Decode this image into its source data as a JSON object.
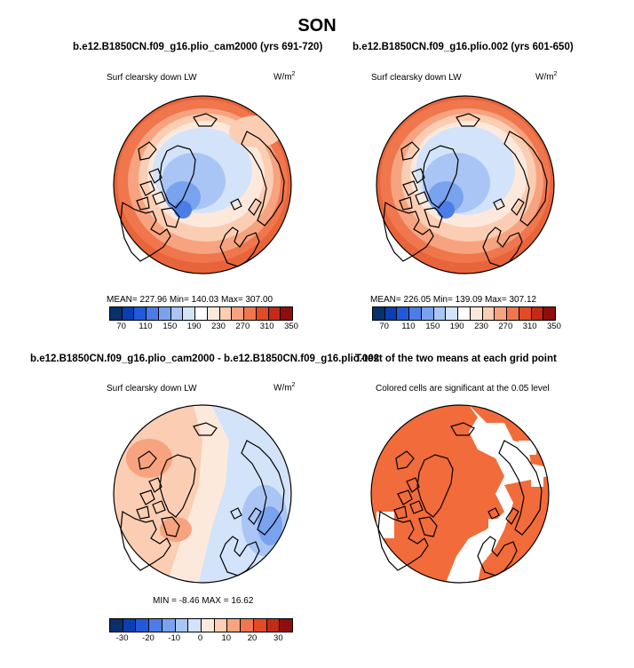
{
  "title": "SON",
  "colorbar_abs": {
    "colors": [
      "#08306b",
      "#0a3fb3",
      "#2259d9",
      "#4c7de6",
      "#7aa3ef",
      "#a9c5f5",
      "#d2e3fa",
      "#ffffff",
      "#fde9dc",
      "#fbcdb2",
      "#f7a37f",
      "#f0764e",
      "#e34a26",
      "#c42b17",
      "#8f0d0d"
    ],
    "labels": [
      "70",
      "110",
      "150",
      "190",
      "230",
      "270",
      "310",
      "350"
    ]
  },
  "colorbar_diff": {
    "colors": [
      "#08306b",
      "#0a3fb3",
      "#2259d9",
      "#4c7de6",
      "#7aa3ef",
      "#a9c5f5",
      "#d2e3fa",
      "#fde9dc",
      "#fbcdb2",
      "#f7a37f",
      "#f0764e",
      "#e34a26",
      "#c42b17",
      "#8f0d0d"
    ],
    "labels": [
      "-30",
      "-20",
      "-10",
      "0",
      "10",
      "20",
      "30"
    ]
  },
  "panels": {
    "p1": {
      "title": "b.e12.B1850CN.f09_g16.plio_cam2000 (yrs 691-720)",
      "label": "Surf clearsky down LW",
      "units": "W/m",
      "stats": "MEAN= 227.96   Min= 140.03   Max= 307.00"
    },
    "p2": {
      "title": "b.e12.B1850CN.f09_g16.plio.002 (yrs 601-650)",
      "label": "Surf clearsky down LW",
      "units": "W/m",
      "stats": "MEAN= 226.05   Min= 139.09   Max= 307.12"
    },
    "p3": {
      "title": "b.e12.B1850CN.f09_g16.plio_cam2000 - b.e12.B1850CN.f09_g16.plio.002",
      "label": "Surf clearsky down LW",
      "units": "W/m",
      "stats": "MIN =  -8.46  MAX =  16.62"
    },
    "p4": {
      "title": "T-test of the two means at each grid point",
      "label": "Colored cells are significant at the 0.05 level",
      "sig_color": "#f26b3a"
    }
  },
  "chart_data": [
    {
      "type": "heatmap",
      "title": "b.e12.B1850CN.f09_g16.plio_cam2000 (yrs 691-720)",
      "label": "Surf clearsky down LW",
      "units": "W/m2",
      "mean": 227.96,
      "min": 140.03,
      "max": 307.0
    },
    {
      "type": "heatmap",
      "title": "b.e12.B1850CN.f09_g16.plio.002 (yrs 601-650)",
      "label": "Surf clearsky down LW",
      "units": "W/m2",
      "mean": 226.05,
      "min": 139.09,
      "max": 307.12
    },
    {
      "type": "heatmap",
      "title": "b.e12.B1850CN.f09_g16.plio_cam2000 - b.e12.B1850CN.f09_g16.plio.002",
      "label": "Surf clearsky down LW",
      "units": "W/m2",
      "min": -8.46,
      "max": 16.62
    },
    {
      "type": "heatmap",
      "title": "T-test of the two means at each grid point",
      "label": "Colored cells are significant at the 0.05 level"
    }
  ]
}
